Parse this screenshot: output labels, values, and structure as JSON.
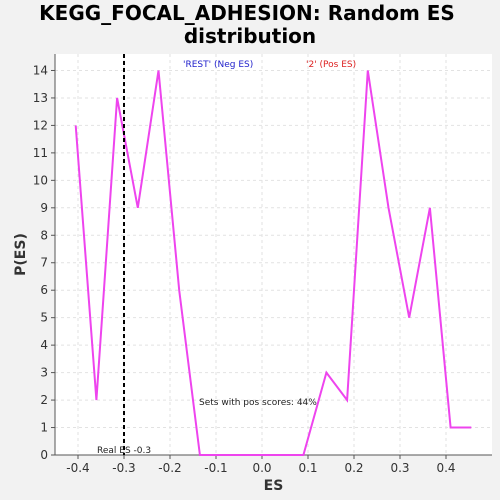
{
  "chart_data": {
    "type": "line",
    "title_lines": [
      "KEGG_FOCAL_ADHESION: Random ES",
      "distribution"
    ],
    "xlabel": "ES",
    "ylabel": "P(ES)",
    "xlim": [
      -0.45,
      0.5
    ],
    "ylim": [
      0,
      14.6
    ],
    "x_ticks": [
      -0.4,
      -0.3,
      -0.2,
      -0.1,
      0.0,
      0.1,
      0.2,
      0.3,
      0.4
    ],
    "x_tick_labels": [
      "-0.4",
      "-0.3",
      "-0.2",
      "-0.1",
      "0.0",
      "0.1",
      "0.2",
      "0.3",
      "0.4"
    ],
    "y_ticks": [
      0,
      1,
      2,
      3,
      4,
      5,
      6,
      7,
      8,
      9,
      10,
      11,
      12,
      13,
      14
    ],
    "grid": true,
    "series": [
      {
        "color": "#ee44ee",
        "x": [
          -0.405,
          -0.36,
          -0.315,
          -0.27,
          -0.225,
          -0.18,
          -0.135,
          -0.09,
          -0.045,
          0.0,
          0.045,
          0.09,
          0.14,
          0.185,
          0.23,
          0.275,
          0.32,
          0.365,
          0.41,
          0.455
        ],
        "y": [
          12,
          2,
          13,
          9,
          14,
          6,
          0,
          0,
          0,
          0,
          0,
          0,
          3,
          2,
          14,
          9,
          5,
          9,
          1,
          1
        ]
      }
    ],
    "legend": [
      {
        "text": "'REST' (Neg ES)",
        "color": "#2222cc"
      },
      {
        "text": "'2' (Pos ES)",
        "color": "#dd2222"
      }
    ],
    "reference_line": {
      "x": -0.3,
      "label": "Real ES -0.3",
      "color": "#000000"
    },
    "annotation": "Sets with pos scores: 44%"
  }
}
